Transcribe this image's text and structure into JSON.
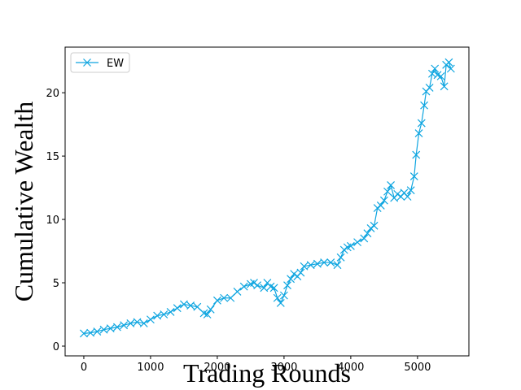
{
  "chart_data": {
    "type": "line",
    "x_label": "Trading Rounds",
    "y_label": "Cumulative Wealth",
    "x": [
      0,
      100,
      200,
      300,
      400,
      500,
      600,
      700,
      800,
      900,
      1000,
      1100,
      1200,
      1300,
      1400,
      1500,
      1600,
      1700,
      1800,
      1850,
      1900,
      2000,
      2100,
      2200,
      2300,
      2400,
      2500,
      2550,
      2600,
      2700,
      2750,
      2800,
      2850,
      2900,
      2950,
      3000,
      3050,
      3100,
      3150,
      3200,
      3250,
      3300,
      3400,
      3500,
      3600,
      3700,
      3800,
      3850,
      3900,
      3950,
      4000,
      4100,
      4200,
      4250,
      4300,
      4350,
      4400,
      4450,
      4500,
      4550,
      4600,
      4650,
      4700,
      4750,
      4800,
      4850,
      4900,
      4950,
      4980,
      5020,
      5060,
      5100,
      5130,
      5180,
      5220,
      5260,
      5300,
      5350,
      5400,
      5430,
      5470,
      5500
    ],
    "series": [
      {
        "name": "EW",
        "color": "#0ea5e0",
        "marker": "x",
        "values": [
          1.0,
          1.05,
          1.15,
          1.3,
          1.4,
          1.5,
          1.65,
          1.8,
          1.9,
          1.8,
          2.1,
          2.4,
          2.5,
          2.7,
          3.0,
          3.3,
          3.2,
          3.1,
          2.6,
          2.5,
          2.9,
          3.6,
          3.8,
          3.8,
          4.3,
          4.7,
          4.9,
          5.0,
          4.8,
          4.6,
          5.0,
          4.7,
          4.6,
          3.8,
          3.4,
          4.0,
          4.8,
          5.3,
          5.7,
          5.5,
          5.8,
          6.3,
          6.4,
          6.5,
          6.6,
          6.6,
          6.4,
          7.0,
          7.6,
          7.8,
          7.9,
          8.2,
          8.5,
          8.9,
          9.3,
          9.5,
          10.9,
          11.1,
          11.5,
          12.2,
          12.7,
          11.7,
          12.0,
          11.8,
          12.1,
          11.8,
          12.3,
          13.4,
          15.1,
          16.8,
          17.6,
          19.0,
          20.1,
          20.4,
          21.5,
          21.9,
          21.4,
          21.3,
          20.5,
          22.2,
          22.4,
          21.9
        ]
      }
    ],
    "xlim": [
      -280,
      5770
    ],
    "ylim": [
      -0.77,
      23.6
    ],
    "xticks": [
      0,
      1000,
      2000,
      3000,
      4000,
      5000
    ],
    "yticks": [
      0,
      5,
      10,
      15,
      20
    ],
    "grid": false,
    "legend": "upper left"
  }
}
